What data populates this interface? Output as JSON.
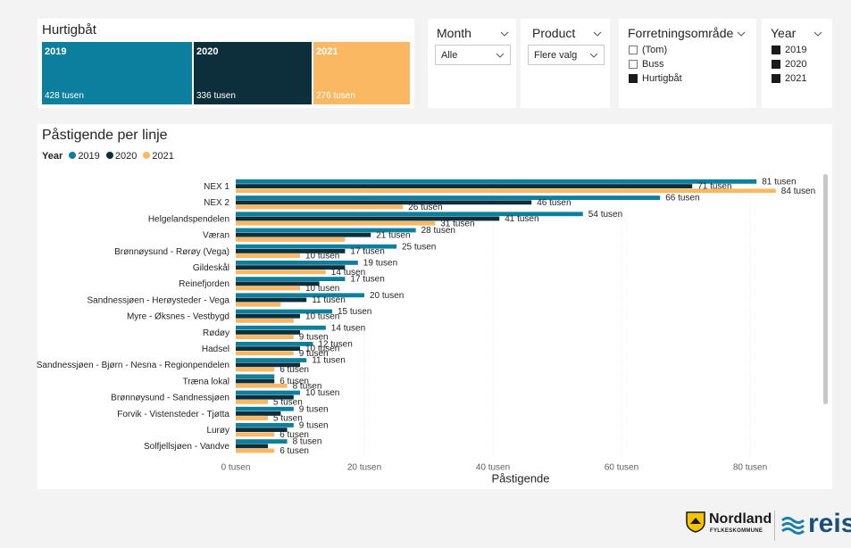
{
  "tiles_card": {
    "title": "Hurtigbåt",
    "tiles": [
      {
        "year": "2019",
        "value": "428 tusen",
        "color": "#0c7f9e"
      },
      {
        "year": "2020",
        "value": "336 tusen",
        "color": "#0d2f3b"
      },
      {
        "year": "2021",
        "value": "276 tusen",
        "color": "#fbb862"
      }
    ]
  },
  "slicers": {
    "month": {
      "title": "Month",
      "value": "Alle"
    },
    "product": {
      "title": "Product",
      "value": "Flere valg"
    },
    "area": {
      "title": "Forretningsområde",
      "options": [
        {
          "label": "(Tom)",
          "checked": false
        },
        {
          "label": "Buss",
          "checked": false
        },
        {
          "label": "Hurtigbåt",
          "checked": true
        }
      ]
    },
    "year": {
      "title": "Year",
      "options": [
        {
          "label": "2019",
          "checked": true
        },
        {
          "label": "2020",
          "checked": true
        },
        {
          "label": "2021",
          "checked": true
        }
      ]
    }
  },
  "chart_card": {
    "title": "Påstigende per linje"
  },
  "legend": {
    "title": "Year",
    "items": [
      {
        "label": "2019",
        "color": "#0c7f9e"
      },
      {
        "label": "2020",
        "color": "#0d2f3b"
      },
      {
        "label": "2021",
        "color": "#fbb862"
      }
    ]
  },
  "chart_data": {
    "type": "bar",
    "orientation": "horizontal",
    "title": "Påstigende per linje",
    "xlabel": "Påstigende",
    "ylabel": "",
    "xlim": [
      0,
      90
    ],
    "xticks": [
      0,
      20,
      40,
      60,
      80
    ],
    "xtick_labels": [
      "0 tusen",
      "20 tusen",
      "40 tusen",
      "60 tusen",
      "80 tusen"
    ],
    "label_suffix": " tusen",
    "categories": [
      "NEX 1",
      "NEX 2",
      "Helgelandspendelen",
      "Væran",
      "Brønnøysund - Rørøy (Vega)",
      "Gildeskål",
      "Reinefjorden",
      "Sandnessjøen - Herøysteder - Vega",
      "Myre - Øksnes - Vestbygd",
      "Rødøy",
      "Hadsel",
      "Sandnessjøen - Bjørn - Nesna - Regionpendelen",
      "Træna lokal",
      "Brønnøysund - Sandnessjøen",
      "Forvik - Vistensteder - Tjøtta",
      "Lurøy",
      "Solfjellsjøen - Vandve"
    ],
    "series": [
      {
        "name": "2019",
        "color": "#0c7f9e",
        "values": [
          81,
          66,
          54,
          28,
          25,
          19,
          17,
          20,
          15,
          14,
          12,
          11,
          6,
          10,
          9,
          9,
          8
        ],
        "labels": [
          true,
          true,
          true,
          true,
          true,
          true,
          true,
          true,
          true,
          true,
          true,
          true,
          false,
          true,
          true,
          true,
          true
        ]
      },
      {
        "name": "2020",
        "color": "#0d2f3b",
        "values": [
          71,
          46,
          41,
          21,
          17,
          17,
          13,
          11,
          10,
          10,
          10,
          10,
          6,
          9,
          7,
          8,
          5
        ],
        "labels": [
          true,
          true,
          true,
          true,
          true,
          false,
          false,
          true,
          true,
          false,
          true,
          false,
          true,
          false,
          false,
          false,
          false
        ]
      },
      {
        "name": "2021",
        "color": "#fbb862",
        "values": [
          84,
          26,
          31,
          17,
          10,
          14,
          10,
          7,
          9,
          9,
          9,
          6,
          8,
          5,
          5,
          6,
          6
        ],
        "labels": [
          true,
          true,
          true,
          false,
          true,
          true,
          true,
          false,
          false,
          true,
          true,
          true,
          true,
          true,
          true,
          true,
          true
        ]
      }
    ],
    "grid": true,
    "legend_position": "top-left"
  },
  "footer": {
    "nordland_name": "Nordland",
    "nordland_sub": "FYLKESKOMMUNE",
    "reis_text": "reis"
  }
}
